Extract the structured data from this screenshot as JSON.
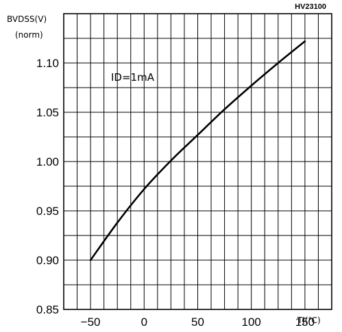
{
  "chart_data": {
    "type": "line",
    "title": "",
    "code": "HV23100",
    "ylabel_line1": "BVDSS(V)",
    "ylabel_line2": "(norm)",
    "xlabel": "TJ(℃)",
    "annotation": "ID=1mA",
    "xlim": [
      -75,
      175
    ],
    "ylim": [
      0.85,
      1.15
    ],
    "x_ticks": [
      -50,
      0,
      50,
      100,
      150
    ],
    "x_tick_labels": [
      "−50",
      "0",
      "50",
      "100",
      "150"
    ],
    "y_ticks": [
      0.85,
      0.9,
      0.95,
      1.0,
      1.05,
      1.1
    ],
    "y_tick_labels": [
      "0.85",
      "0.90",
      "0.95",
      "1.00",
      "1.05",
      "1.10"
    ],
    "grid": true,
    "series": [
      {
        "x": [
          -50,
          -25,
          0,
          25,
          50,
          75,
          100,
          125,
          150
        ],
        "y": [
          0.9,
          0.938,
          0.972,
          1.001,
          1.027,
          1.053,
          1.077,
          1.1,
          1.122
        ]
      }
    ]
  }
}
